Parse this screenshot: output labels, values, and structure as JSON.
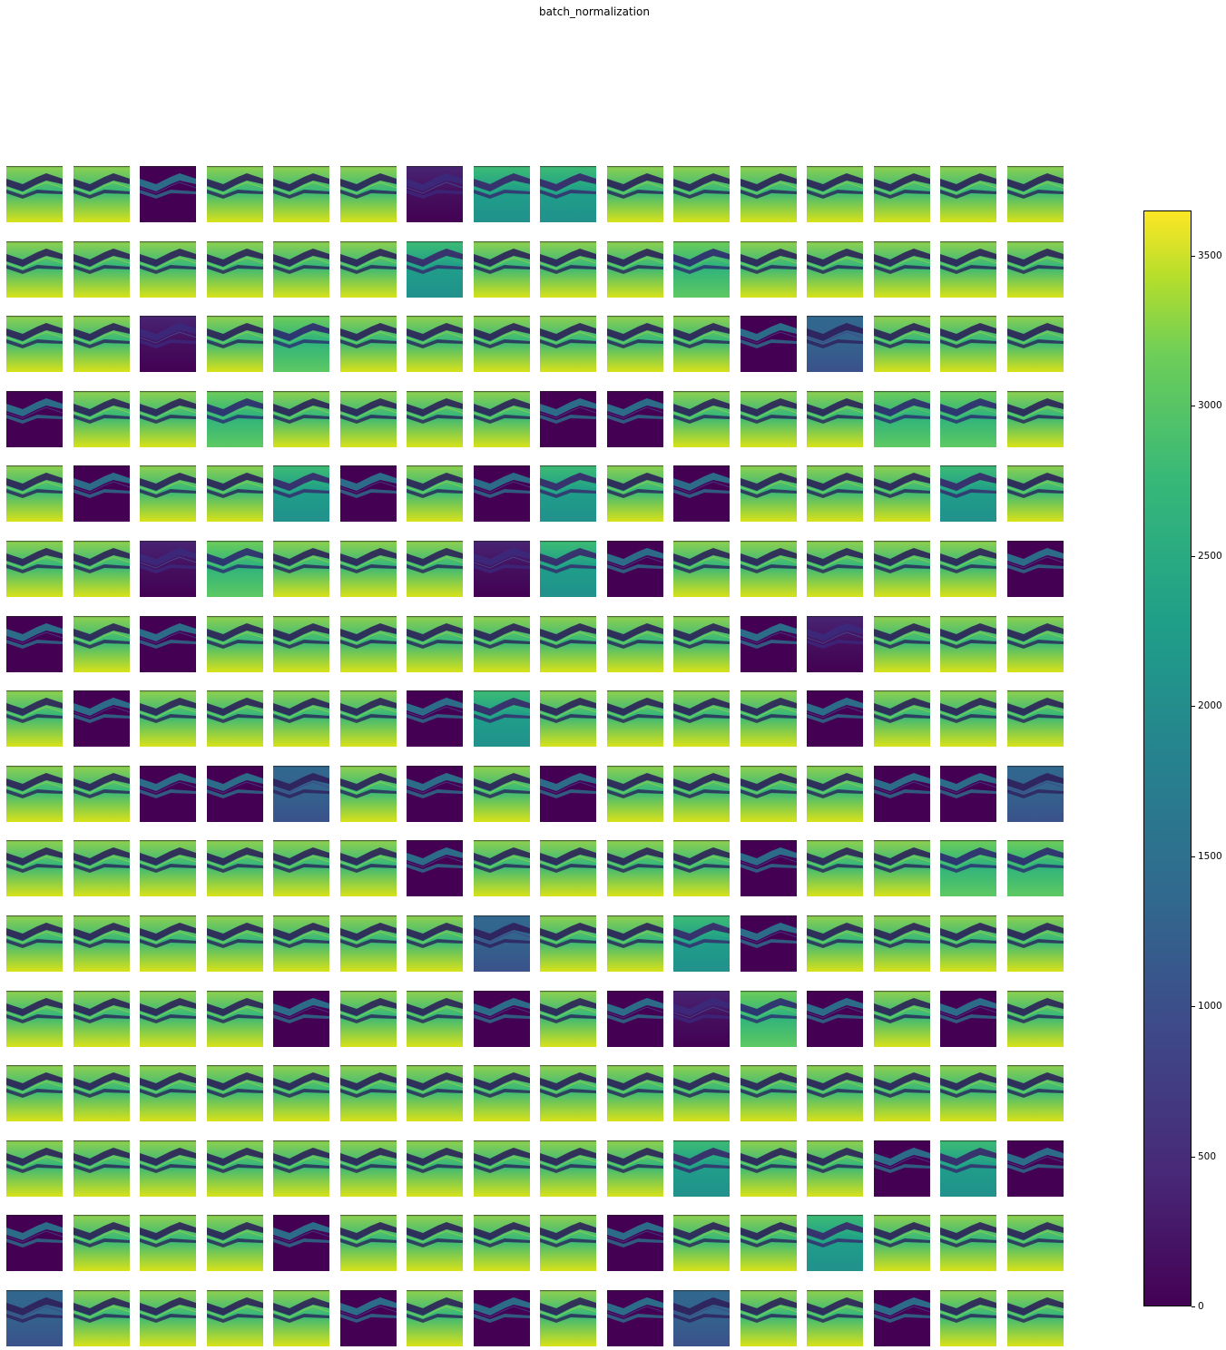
{
  "title": "batch_normalization",
  "colorbar": {
    "colormap": "viridis",
    "vmin": 0,
    "vmax": 3650,
    "ticks": [
      {
        "value": 0,
        "label": "0"
      },
      {
        "value": 500,
        "label": "500"
      },
      {
        "value": 1000,
        "label": "1000"
      },
      {
        "value": 1500,
        "label": "1500"
      },
      {
        "value": 2000,
        "label": "2000"
      },
      {
        "value": 2500,
        "label": "2500"
      },
      {
        "value": 3000,
        "label": "3000"
      },
      {
        "value": 3500,
        "label": "3500"
      }
    ]
  },
  "grid": {
    "rows": 16,
    "cols": 16,
    "maps": [
      "b",
      "b",
      "d",
      "b",
      "b",
      "b",
      "d1",
      "t",
      "t",
      "b",
      "b",
      "b",
      "b",
      "b",
      "b",
      "b",
      "b",
      "b",
      "b",
      "b",
      "b",
      "b",
      "t",
      "b",
      "b",
      "b",
      "g",
      "b",
      "b",
      "b",
      "b",
      "b",
      "b",
      "b",
      "d1",
      "b",
      "g",
      "b",
      "b",
      "b",
      "b",
      "b",
      "b",
      "d",
      "n",
      "b",
      "b",
      "b",
      "d",
      "b",
      "b",
      "g",
      "b",
      "b",
      "b",
      "b",
      "d",
      "d",
      "b",
      "b",
      "b",
      "g",
      "g",
      "b",
      "b",
      "d",
      "b",
      "b",
      "t",
      "d",
      "b",
      "d",
      "t",
      "b",
      "d",
      "b",
      "b",
      "b",
      "t",
      "b",
      "b",
      "b",
      "d1",
      "g",
      "b",
      "b",
      "b",
      "d1",
      "t",
      "d",
      "b",
      "b",
      "b",
      "b",
      "b",
      "d",
      "d",
      "b",
      "d",
      "b",
      "b",
      "b",
      "b",
      "b",
      "b",
      "b",
      "b",
      "d",
      "d1",
      "b",
      "b",
      "b",
      "b",
      "d",
      "b",
      "b",
      "b",
      "b",
      "d",
      "t",
      "b",
      "b",
      "b",
      "b",
      "d",
      "b",
      "b",
      "b",
      "b",
      "b",
      "d",
      "d",
      "n",
      "b",
      "d",
      "b",
      "d",
      "b",
      "b",
      "b",
      "b",
      "d",
      "d",
      "n",
      "b",
      "b",
      "b",
      "b",
      "b",
      "b",
      "d",
      "b",
      "b",
      "b",
      "b",
      "d",
      "b",
      "b",
      "g",
      "g",
      "b",
      "b",
      "b",
      "b",
      "b",
      "b",
      "b",
      "n",
      "b",
      "b",
      "t",
      "d",
      "b",
      "b",
      "b",
      "b",
      "b",
      "b",
      "b",
      "b",
      "d",
      "b",
      "b",
      "d",
      "b",
      "d",
      "d1",
      "g",
      "d",
      "b",
      "d",
      "b",
      "b",
      "b",
      "b",
      "b",
      "b",
      "b",
      "b",
      "b",
      "b",
      "b",
      "b",
      "b",
      "b",
      "b",
      "b",
      "b",
      "b",
      "b",
      "b",
      "b",
      "b",
      "b",
      "b",
      "b",
      "b",
      "b",
      "t",
      "b",
      "b",
      "d",
      "t",
      "d",
      "d",
      "b",
      "b",
      "b",
      "d",
      "b",
      "b",
      "b",
      "b",
      "d",
      "b",
      "b",
      "t",
      "b",
      "b",
      "b",
      "n",
      "b",
      "b",
      "b",
      "b",
      "d",
      "b",
      "d",
      "b",
      "d",
      "n",
      "b",
      "b",
      "d",
      "b",
      "b"
    ]
  }
}
